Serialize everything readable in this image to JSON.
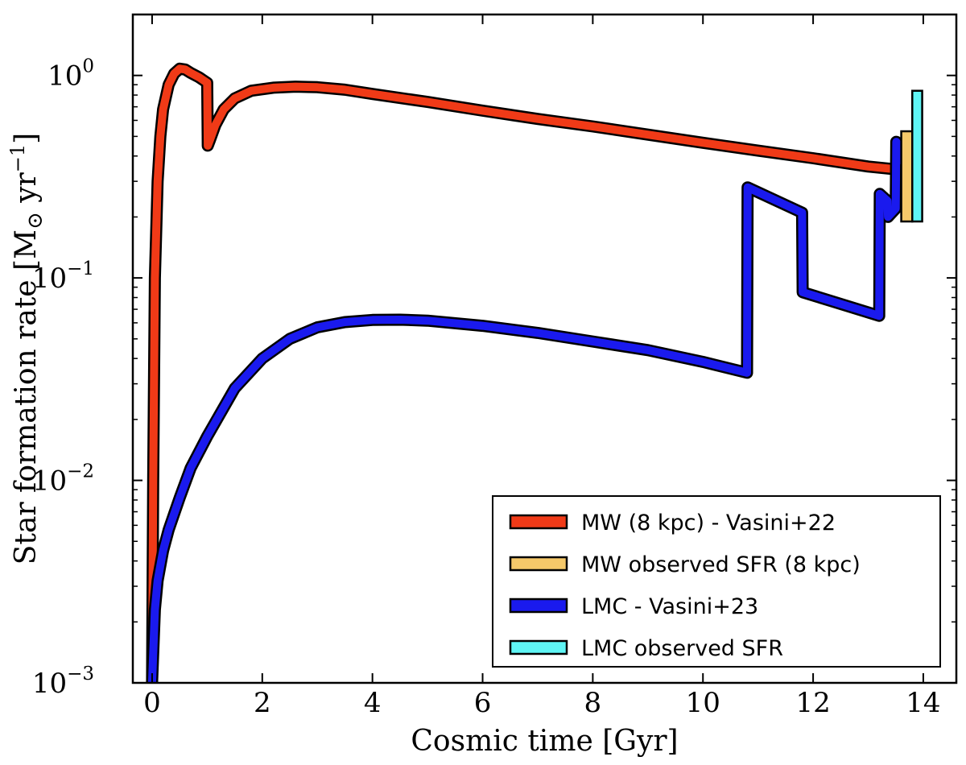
{
  "chart_data": {
    "type": "line",
    "xlabel": "Cosmic time [Gyr]",
    "ylabel": "Star formation rate [M⊙ yr⁻¹]",
    "ylabel_parts": {
      "prefix": "Star formation rate [M",
      "sun": "⊙",
      "mid": " yr",
      "exp": "−1",
      "suffix": "]"
    },
    "xlim": [
      -0.35,
      14.6
    ],
    "ylim": [
      0.001,
      2.0
    ],
    "yscale": "log",
    "xticks": [
      "0",
      "2",
      "4",
      "6",
      "8",
      "10",
      "12",
      "14"
    ],
    "xtick_values": [
      0,
      2,
      4,
      6,
      8,
      10,
      12,
      14
    ],
    "yticks": [
      {
        "value": 0.001,
        "base": "10",
        "exp": "−3"
      },
      {
        "value": 0.01,
        "base": "10",
        "exp": "−2"
      },
      {
        "value": 0.1,
        "base": "10",
        "exp": "−1"
      },
      {
        "value": 1,
        "base": "10",
        "exp": "0"
      }
    ],
    "legend_position": "lower-right",
    "series": [
      {
        "name": "MW (8 kpc) - Vasini+22",
        "kind": "line",
        "color": "#f03a17",
        "x": [
          0.0,
          0.02,
          0.05,
          0.1,
          0.15,
          0.2,
          0.3,
          0.4,
          0.5,
          0.6,
          0.7,
          0.85,
          1.0,
          1.01,
          1.05,
          1.15,
          1.3,
          1.5,
          1.8,
          2.2,
          2.6,
          3.0,
          3.5,
          4.0,
          5.0,
          6.0,
          7.0,
          8.0,
          9.0,
          10.0,
          11.0,
          12.0,
          13.0,
          13.45
        ],
        "y": [
          0.001,
          0.01,
          0.1,
          0.3,
          0.5,
          0.68,
          0.9,
          1.02,
          1.08,
          1.07,
          1.03,
          0.98,
          0.92,
          0.45,
          0.48,
          0.57,
          0.68,
          0.77,
          0.84,
          0.87,
          0.88,
          0.875,
          0.85,
          0.81,
          0.74,
          0.67,
          0.61,
          0.56,
          0.51,
          0.465,
          0.425,
          0.39,
          0.355,
          0.345
        ]
      },
      {
        "name": "MW observed SFR (8 kpc)",
        "kind": "bar",
        "color": "#f5c96a",
        "x_range": [
          13.6,
          13.8
        ],
        "y_range": [
          0.19,
          0.53
        ]
      },
      {
        "name": "LMC - Vasini+23",
        "kind": "line",
        "color": "#1a1aee",
        "x": [
          0.0,
          0.05,
          0.1,
          0.2,
          0.3,
          0.5,
          0.7,
          1.0,
          1.5,
          2.0,
          2.5,
          3.0,
          3.5,
          4.0,
          4.5,
          5.0,
          6.0,
          7.0,
          8.0,
          9.0,
          10.0,
          10.8,
          10.81,
          11.8,
          11.81,
          13.2,
          13.21,
          13.35,
          13.36,
          13.5,
          13.51,
          13.6,
          13.61,
          13.7
        ],
        "y": [
          0.001,
          0.0023,
          0.0032,
          0.0045,
          0.0057,
          0.0082,
          0.0115,
          0.0165,
          0.0285,
          0.04,
          0.05,
          0.057,
          0.0605,
          0.062,
          0.0622,
          0.0615,
          0.058,
          0.0535,
          0.0485,
          0.044,
          0.0385,
          0.034,
          0.28,
          0.21,
          0.085,
          0.065,
          0.26,
          0.24,
          0.2,
          0.22,
          0.47,
          0.43,
          0.38,
          0.41
        ]
      },
      {
        "name": "LMC observed SFR",
        "kind": "bar",
        "color": "#5ff5f5",
        "x_range": [
          13.8,
          13.98
        ],
        "y_range": [
          0.19,
          0.84
        ]
      }
    ]
  }
}
